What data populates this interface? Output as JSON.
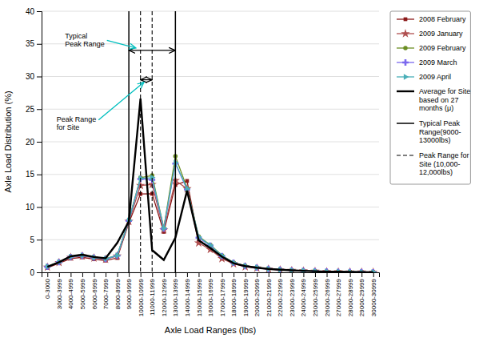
{
  "chart_data": {
    "type": "line",
    "xlabel": "Axle Load Ranges (lbs)",
    "ylabel": "Axle Load Distribution (%)",
    "categories": [
      "0-3000",
      "3000-3999",
      "4000-4999",
      "5000-5999",
      "6000-6999",
      "7000-7999",
      "8000-8999",
      "9000-9999",
      "10000-10999",
      "11000-11999",
      "12000-12999",
      "13000-13999",
      "14000-14999",
      "15000-15999",
      "16000-16999",
      "17000-17999",
      "18000-18999",
      "19000-19999",
      "20000-20999",
      "21000-21999",
      "22000-22999",
      "23000-23999",
      "24000-24999",
      "25000-25999",
      "26000-26999",
      "27000-27999",
      "28000-28999",
      "29000-29999",
      "30000-30999"
    ],
    "series": [
      {
        "name": "2008 February",
        "color": "#8B1A1A",
        "marker": "square",
        "values": [
          0.7,
          1.4,
          2.1,
          2.3,
          2.0,
          1.8,
          2.2,
          7.6,
          12.0,
          12.03,
          6.2,
          13.38,
          14.0,
          4.8,
          3.8,
          2.4,
          1.4,
          0.9,
          0.7,
          0.5,
          0.4,
          0.3,
          0.22,
          0.16,
          0.11,
          0.08,
          0.05,
          0.04,
          0.02
        ]
      },
      {
        "name": "2009 January",
        "color": "#B05050",
        "marker": "star",
        "values": [
          0.8,
          1.5,
          2.3,
          2.5,
          2.2,
          2.0,
          2.5,
          7.8,
          13.3,
          13.46,
          6.5,
          14.08,
          12.8,
          4.5,
          3.5,
          2.1,
          1.3,
          0.85,
          0.65,
          0.48,
          0.37,
          0.28,
          0.22,
          0.16,
          0.11,
          0.08,
          0.055,
          0.038,
          0.02
        ]
      },
      {
        "name": "2009 February",
        "color": "#6B8E23",
        "marker": "circle",
        "values": [
          0.9,
          1.6,
          2.4,
          2.6,
          2.3,
          2.1,
          2.6,
          8.0,
          14.5,
          14.83,
          6.8,
          17.78,
          12.9,
          5.5,
          4.2,
          2.6,
          1.5,
          1.0,
          0.75,
          0.55,
          0.42,
          0.32,
          0.25,
          0.18,
          0.13,
          0.09,
          0.065,
          0.045,
          0.025
        ]
      },
      {
        "name": "2009 March",
        "color": "#7B68EE",
        "marker": "plus",
        "values": [
          0.85,
          1.55,
          2.35,
          2.55,
          2.25,
          2.05,
          2.55,
          7.9,
          14.3,
          14.18,
          6.7,
          16.65,
          12.7,
          5.3,
          4.1,
          2.5,
          1.45,
          0.95,
          0.72,
          0.52,
          0.4,
          0.3,
          0.23,
          0.17,
          0.12,
          0.085,
          0.06,
          0.042,
          0.023
        ]
      },
      {
        "name": "2009 April",
        "color": "#4AAFB8",
        "marker": "triangle-right",
        "values": [
          0.88,
          1.58,
          2.38,
          2.58,
          2.28,
          2.08,
          2.58,
          7.95,
          14.4,
          14.5,
          6.75,
          16.8,
          12.8,
          5.4,
          4.15,
          2.55,
          1.47,
          0.97,
          0.73,
          0.53,
          0.41,
          0.31,
          0.24,
          0.175,
          0.125,
          0.088,
          0.062,
          0.043,
          0.024
        ]
      },
      {
        "name": "Average for Site\nbased on 27\nmonths (μ)",
        "color": "#000000",
        "values": [
          0.85,
          1.55,
          2.45,
          2.7,
          2.35,
          2.15,
          4.5,
          7.8,
          26.6,
          3.4,
          1.9,
          5.3,
          12.5,
          4.9,
          3.7,
          2.4,
          1.4,
          0.95,
          0.7,
          0.52,
          0.4,
          0.3,
          0.23,
          0.17,
          0.11,
          0.085,
          0.058,
          0.038,
          0.018
        ]
      }
    ],
    "reference_lines": [
      {
        "name": "Typical Peak\nRange(9000-\n13000lbs)",
        "color": "#000000",
        "line_style": "solid",
        "x": [
          "9000-9999",
          "13000-13999"
        ]
      },
      {
        "name": "Peak Range for\nSite (10,000-\n12,000lbs)",
        "color": "#000000",
        "line_style": "dashed",
        "x": [
          "10000-10999",
          "11000-11999"
        ]
      }
    ],
    "annotations": [
      {
        "text": "Typical\nPeak Range",
        "color": "#00BFBF",
        "y": 34.0,
        "x": [
          "9000-9999",
          "13000-13999"
        ]
      },
      {
        "text": "Peak Range\nfor Site",
        "color": "#00BFBF",
        "y": 29.5,
        "x": [
          "10000-10999",
          "11000-11999"
        ]
      }
    ],
    "ylim": [
      0,
      40
    ],
    "yticks": [
      0,
      5,
      10,
      15,
      20,
      25,
      30,
      35,
      40
    ],
    "grid": true,
    "legend": "right"
  }
}
